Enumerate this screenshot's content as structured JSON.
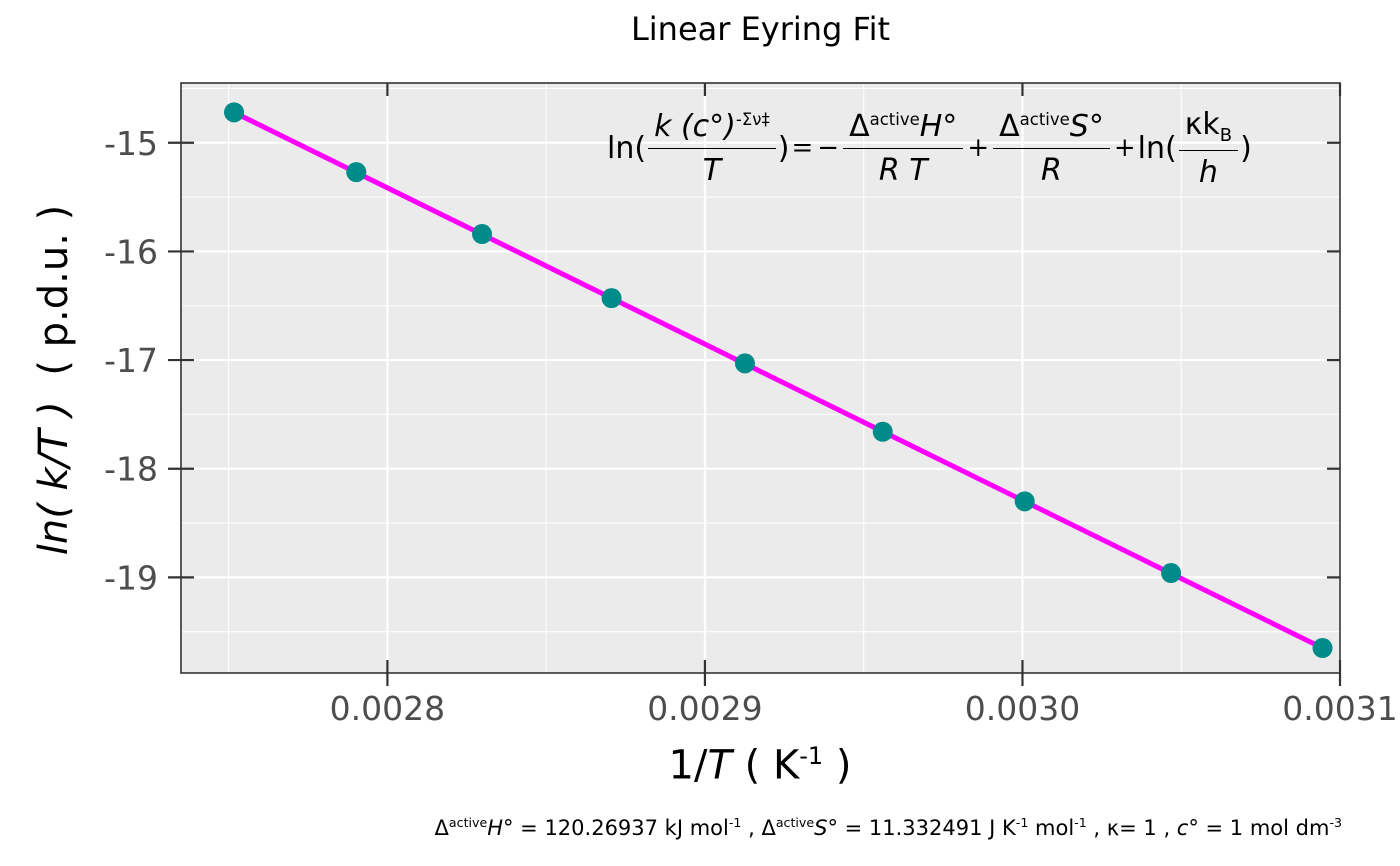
{
  "chart_data": {
    "type": "scatter",
    "title": "Linear Eyring Fit",
    "ylabel_func": "ln",
    "ylabel_var": "( k/T )",
    "ylabel_unit": "( p.d.u. )",
    "xlabel_num": "1/",
    "xlabel_var": "T",
    "xlabel_unit_open": " ( K",
    "xlabel_unit_sup": "-1",
    "xlabel_unit_close": " )",
    "xlim": [
      0.002735,
      0.0031
    ],
    "ylim": [
      -19.88,
      -14.45
    ],
    "x_ticks": [
      0.0028,
      0.0029,
      0.003,
      0.0031
    ],
    "x_tick_labels": [
      "0.0028",
      "0.0029",
      "0.0030",
      "0.0031"
    ],
    "y_ticks": [
      -15,
      -16,
      -17,
      -18,
      -19
    ],
    "y_tick_labels": [
      "-15",
      "-16",
      "-17",
      "-18",
      "-19"
    ],
    "grid": true,
    "series": [
      {
        "kind": "points",
        "color": "#008b8b",
        "x": [
          0.0027517,
          0.0027902,
          0.0028298,
          0.0028706,
          0.0029126,
          0.002956,
          0.0030007,
          0.0030468,
          0.0030945
        ],
        "y": [
          -14.72,
          -15.27,
          -15.84,
          -16.43,
          -17.03,
          -17.66,
          -18.3,
          -18.96,
          -19.65
        ]
      },
      {
        "kind": "fit-line",
        "color": "#ff00ff",
        "x": [
          0.0027517,
          0.0030945
        ],
        "y": [
          -14.72,
          -19.65
        ]
      }
    ],
    "equation": {
      "ln": "ln(",
      "k": "k",
      "c": " (c°)",
      "exp": "-Σν‡",
      "T": "T",
      "close": ")",
      "eq": "=",
      "minus": "−",
      "delta_H": "Δ",
      "sup_active_H": "active",
      "H": "H°",
      "RT": "R T",
      "plus1": "+",
      "delta_S": "Δ",
      "sup_active_S": "active",
      "S": "S°",
      "R": "R",
      "plus2": "+",
      "ln2": "ln(",
      "kappa": "κk",
      "sub_B": "B",
      "h": "h",
      "close2": ")"
    },
    "footnote": {
      "dH_delta": "Δ",
      "dH_sup": "active",
      "dH_sym": "H°",
      "dH_value": " = 120.26937 kJ mol",
      "dH_exp": "-1",
      "sep1": " , ",
      "dS_delta": "Δ",
      "dS_sup": "active",
      "dS_sym": "S°",
      "dS_value": " = 11.332491  J K",
      "dS_exp1": "-1",
      "dS_mid": " mol",
      "dS_exp2": "-1",
      "kappa": " , κ= 1 , ",
      "c_sym": "c°",
      "c_value": " = 1  mol dm",
      "c_exp": "-3"
    }
  }
}
